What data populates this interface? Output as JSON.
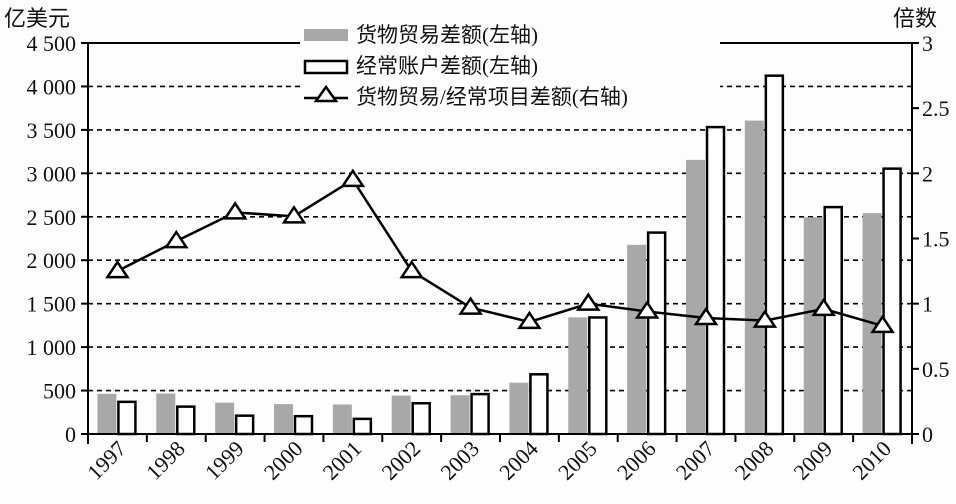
{
  "chart_data": {
    "type": "bar",
    "title": "",
    "left_unit": "亿美元",
    "right_unit": "倍数",
    "xlabel": "",
    "ylabel": "亿美元",
    "y2label": "倍数",
    "categories": [
      "1997",
      "1998",
      "1999",
      "2000",
      "2001",
      "2002",
      "2003",
      "2004",
      "2005",
      "2006",
      "2007",
      "2008",
      "2009",
      "2010"
    ],
    "ylim": [
      0,
      4500
    ],
    "y2lim": [
      0,
      3
    ],
    "y_ticks": [
      "0",
      "500",
      "1 000",
      "1 500",
      "2 000",
      "2 500",
      "3 000",
      "3 500",
      "4 000",
      "4 500"
    ],
    "y_tick_values": [
      0,
      500,
      1000,
      1500,
      2000,
      2500,
      3000,
      3500,
      4000,
      4500
    ],
    "y2_ticks": [
      "0",
      "0.5",
      "1",
      "1.5",
      "2",
      "2.5",
      "3"
    ],
    "y2_tick_values": [
      0,
      0.5,
      1,
      1.5,
      2,
      2.5,
      3
    ],
    "grid": "horizontal dashed",
    "legend_position": "top-center",
    "series": [
      {
        "name": "货物贸易差额(左轴)",
        "type": "bar",
        "axis": "left",
        "color": "#a8a8a8",
        "values": [
          462,
          466,
          360,
          344,
          340,
          442,
          446,
          590,
          1342,
          2177,
          3155,
          3607,
          2495,
          2542
        ]
      },
      {
        "name": "经常账户差额(左轴)",
        "type": "bar",
        "axis": "left",
        "color": "#ffffff",
        "stroke": "#000000",
        "values": [
          370,
          315,
          211,
          205,
          174,
          354,
          459,
          687,
          1341,
          2318,
          3532,
          4124,
          2611,
          3054
        ]
      },
      {
        "name": "货物贸易/经常项目差额(右轴)",
        "type": "line",
        "axis": "right",
        "marker": "triangle",
        "color": "#000000",
        "values": [
          1.25,
          1.48,
          1.7,
          1.67,
          1.95,
          1.25,
          0.97,
          0.86,
          1.0,
          0.94,
          0.89,
          0.87,
          0.96,
          0.83
        ]
      }
    ]
  }
}
